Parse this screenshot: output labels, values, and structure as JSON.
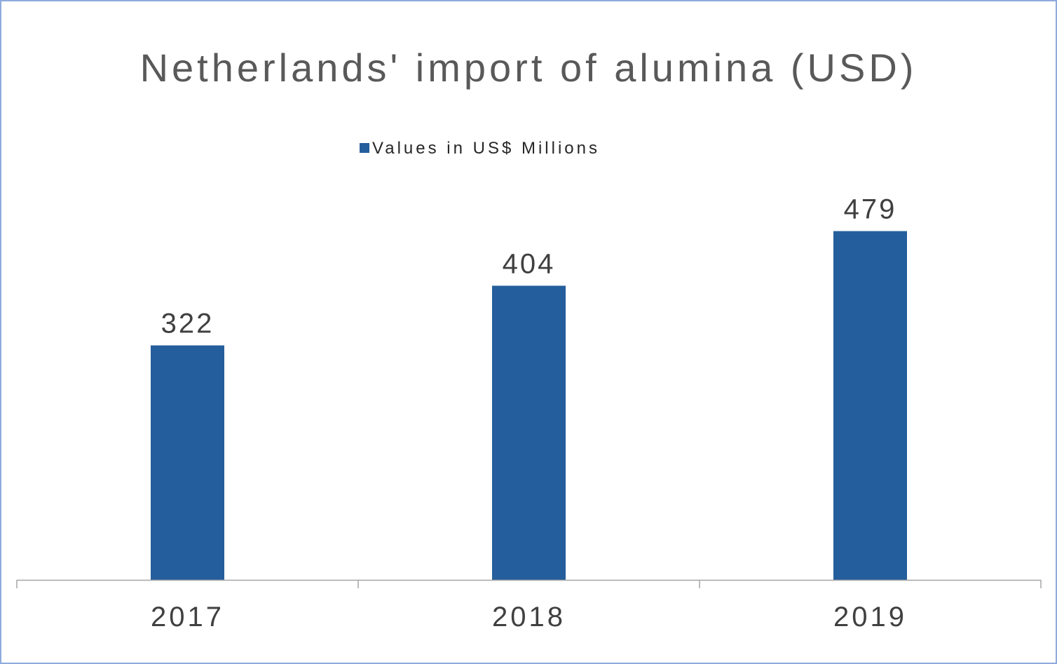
{
  "chart_data": {
    "type": "bar",
    "title": "Netherlands' import of alumina (USD)",
    "categories": [
      "2017",
      "2018",
      "2019"
    ],
    "series": [
      {
        "name": "Values in US$ Millions",
        "values": [
          322,
          404,
          479
        ]
      }
    ],
    "data_labels": [
      "322",
      "404",
      "479"
    ],
    "ylim": [
      0,
      650
    ],
    "grid": false,
    "legend_position": "top",
    "colors": {
      "bar": "#255e9c",
      "axis": "#a6a6a6"
    }
  }
}
